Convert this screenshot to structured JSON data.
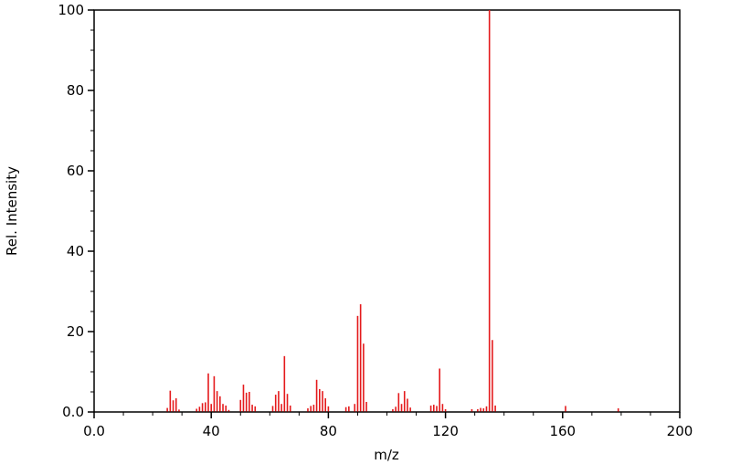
{
  "figure": {
    "background": "#ffffff",
    "xlabel": "m/z",
    "ylabel": "Rel. Intensity"
  },
  "chart_data": {
    "type": "bar",
    "subtype": "mass-spectrum-stick-plot",
    "title": "",
    "xlabel": "m/z",
    "ylabel": "Rel. Intensity",
    "xlim": [
      0,
      200
    ],
    "ylim": [
      0,
      100
    ],
    "x_major_tick_step": 40,
    "x_minor_tick_step": 10,
    "y_major_tick_step": 20,
    "y_minor_tick_step": 5,
    "x_ticks": [
      {
        "value": 0,
        "label": "0.0"
      },
      {
        "value": 40,
        "label": "40"
      },
      {
        "value": 80,
        "label": "80"
      },
      {
        "value": 120,
        "label": "120"
      },
      {
        "value": 160,
        "label": "160"
      },
      {
        "value": 200,
        "label": "200"
      }
    ],
    "y_ticks": [
      {
        "value": 0,
        "label": "0.0"
      },
      {
        "value": 20,
        "label": "20"
      },
      {
        "value": 40,
        "label": "40"
      },
      {
        "value": 60,
        "label": "60"
      },
      {
        "value": 80,
        "label": "80"
      },
      {
        "value": 100,
        "label": "100"
      }
    ],
    "grid": false,
    "legend": false,
    "peak_color": "#e41a1c",
    "frame_color": "#000000",
    "peaks": [
      [
        25,
        1.0
      ],
      [
        26,
        5.3
      ],
      [
        27,
        2.9
      ],
      [
        28,
        3.4
      ],
      [
        29,
        0.6
      ],
      [
        35,
        0.8
      ],
      [
        36,
        1.3
      ],
      [
        37,
        2.2
      ],
      [
        38,
        2.4
      ],
      [
        39,
        9.6
      ],
      [
        40,
        2.0
      ],
      [
        41,
        8.9
      ],
      [
        42,
        5.2
      ],
      [
        43,
        3.9
      ],
      [
        44,
        2.0
      ],
      [
        45,
        1.6
      ],
      [
        46,
        0.5
      ],
      [
        50,
        3.0
      ],
      [
        51,
        6.8
      ],
      [
        52,
        4.8
      ],
      [
        53,
        5.0
      ],
      [
        54,
        1.8
      ],
      [
        55,
        1.4
      ],
      [
        61,
        1.5
      ],
      [
        62,
        4.3
      ],
      [
        63,
        5.2
      ],
      [
        64,
        2.0
      ],
      [
        65,
        13.9
      ],
      [
        66,
        4.5
      ],
      [
        67,
        1.6
      ],
      [
        73,
        0.9
      ],
      [
        74,
        1.5
      ],
      [
        75,
        1.8
      ],
      [
        76,
        8.0
      ],
      [
        77,
        5.7
      ],
      [
        78,
        5.2
      ],
      [
        79,
        3.4
      ],
      [
        80,
        1.4
      ],
      [
        86,
        1.2
      ],
      [
        87,
        1.4
      ],
      [
        89,
        2.0
      ],
      [
        90,
        23.9
      ],
      [
        91,
        26.8
      ],
      [
        92,
        17.0
      ],
      [
        93,
        2.5
      ],
      [
        102,
        0.7
      ],
      [
        103,
        1.3
      ],
      [
        104,
        4.7
      ],
      [
        105,
        2.0
      ],
      [
        106,
        5.2
      ],
      [
        107,
        3.3
      ],
      [
        108,
        1.1
      ],
      [
        115,
        1.6
      ],
      [
        116,
        1.8
      ],
      [
        117,
        1.5
      ],
      [
        118,
        10.8
      ],
      [
        119,
        2.0
      ],
      [
        120,
        0.7
      ],
      [
        129,
        0.7
      ],
      [
        131,
        0.7
      ],
      [
        132,
        1.0
      ],
      [
        133,
        0.9
      ],
      [
        134,
        1.4
      ],
      [
        135,
        100.0
      ],
      [
        136,
        17.9
      ],
      [
        137,
        1.6
      ],
      [
        161,
        1.5
      ],
      [
        179,
        0.9
      ]
    ]
  }
}
